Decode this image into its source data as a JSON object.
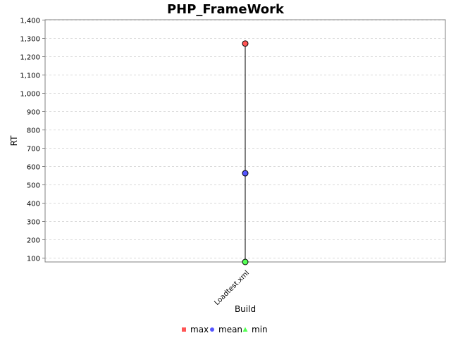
{
  "chart_data": {
    "type": "line",
    "title": "PHP_FrameWork",
    "xlabel": "Build",
    "ylabel": "RT",
    "categories": [
      "Loadtest.xml"
    ],
    "series": [
      {
        "name": "max",
        "values": [
          1270
        ],
        "color": "#ff5555",
        "marker": "square"
      },
      {
        "name": "mean",
        "values": [
          562
        ],
        "color": "#5555ff",
        "marker": "circle"
      },
      {
        "name": "min",
        "values": [
          78
        ],
        "color": "#55ff55",
        "marker": "triangle"
      }
    ],
    "ylim": [
      78,
      1400
    ],
    "yticks": [
      100,
      200,
      300,
      400,
      500,
      600,
      700,
      800,
      900,
      1000,
      1100,
      1200,
      1300,
      1400
    ],
    "ytick_labels": [
      "100",
      "200",
      "300",
      "400",
      "500",
      "600",
      "700",
      "800",
      "900",
      "1,000",
      "1,100",
      "1,200",
      "1,300",
      "1,400"
    ],
    "grid": true,
    "legend_position": "bottom"
  }
}
